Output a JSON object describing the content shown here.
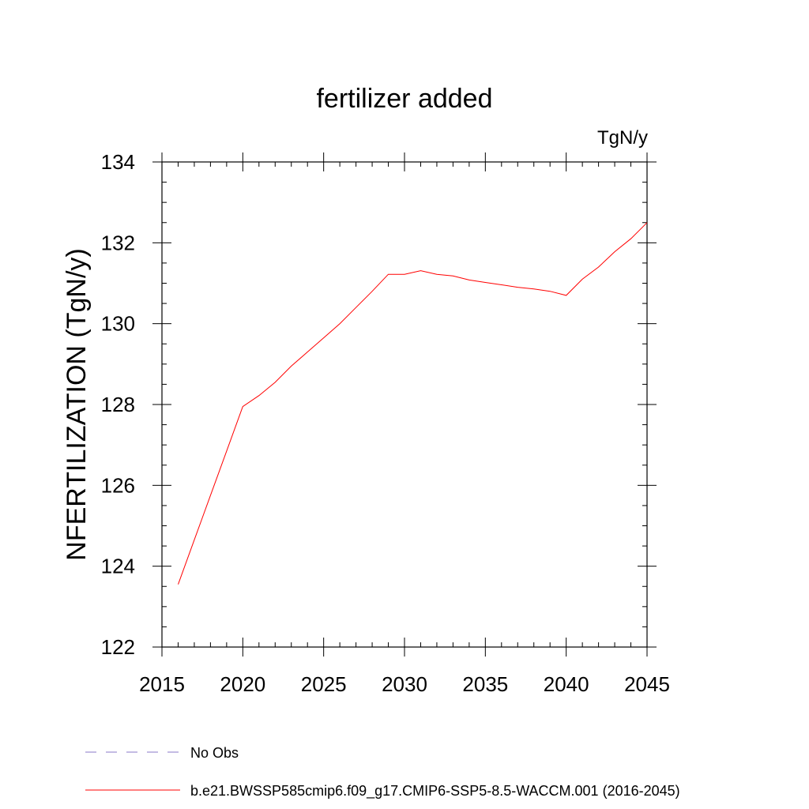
{
  "chart_data": {
    "type": "line",
    "title": "fertilizer added",
    "units": "TgN/y",
    "xlabel": "",
    "ylabel": "NFERTILIZATION  (TgN/y)",
    "xlim": [
      2015,
      2045
    ],
    "ylim": [
      122,
      134
    ],
    "xticks": [
      2015,
      2020,
      2025,
      2030,
      2035,
      2040,
      2045
    ],
    "yticks": [
      122,
      124,
      126,
      128,
      130,
      132,
      134
    ],
    "grid": false,
    "series": [
      {
        "name": "b.e21.BWSSP585cmip6.f09_g17.CMIP6-SSP5-8.5-WACCM.001 (2016-2045)",
        "color": "#ff0000",
        "x": [
          2016,
          2017,
          2018,
          2019,
          2020,
          2021,
          2022,
          2023,
          2024,
          2025,
          2026,
          2027,
          2028,
          2029,
          2030,
          2031,
          2032,
          2033,
          2034,
          2035,
          2036,
          2037,
          2038,
          2039,
          2040,
          2041,
          2042,
          2043,
          2044,
          2045
        ],
        "y": [
          123.55,
          124.65,
          125.75,
          126.85,
          127.95,
          128.22,
          128.55,
          128.95,
          129.3,
          129.65,
          130.0,
          130.4,
          130.8,
          131.22,
          131.22,
          131.31,
          131.22,
          131.18,
          131.08,
          131.02,
          130.96,
          130.9,
          130.86,
          130.8,
          130.7,
          131.1,
          131.4,
          131.78,
          132.1,
          132.5
        ]
      }
    ],
    "legend": {
      "placement": "bottom",
      "entries": [
        {
          "label": "No Obs",
          "color": "#8878c8",
          "style": "dashed"
        },
        {
          "label": "b.e21.BWSSP585cmip6.f09_g17.CMIP6-SSP5-8.5-WACCM.001 (2016-2045)",
          "color": "#ff0000",
          "style": "solid"
        }
      ]
    }
  }
}
